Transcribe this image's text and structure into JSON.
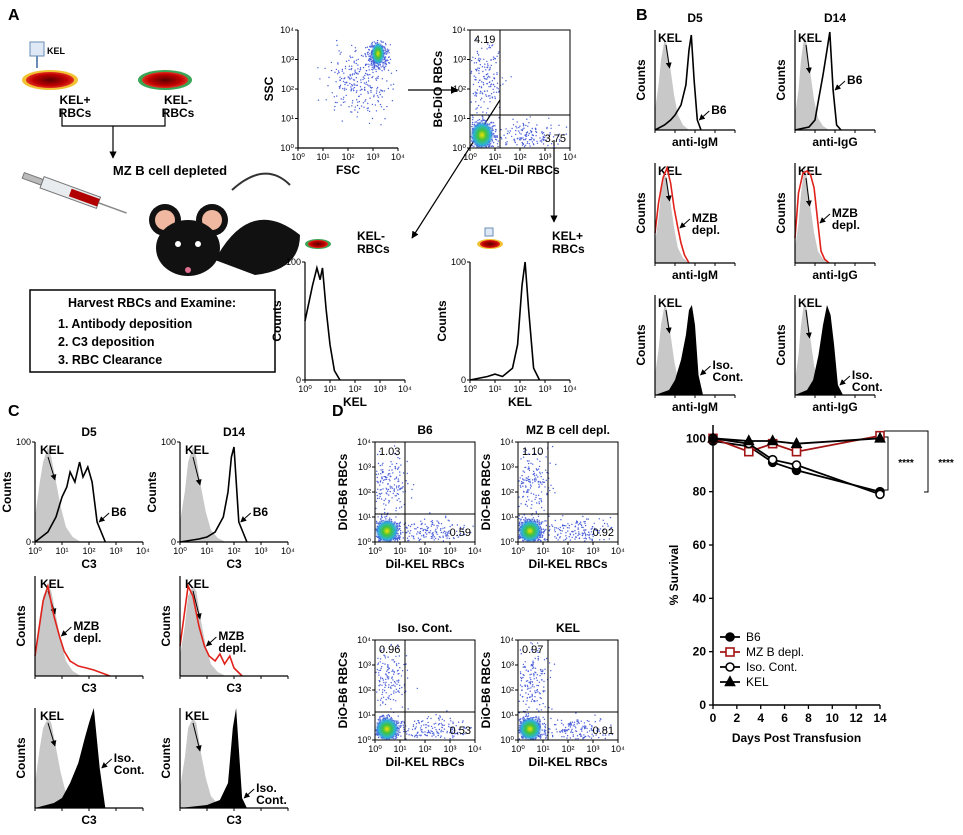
{
  "panel_labels": [
    "A",
    "B",
    "C",
    "D"
  ],
  "log_ticks": [
    {
      "value": 1,
      "label": "10⁰"
    },
    {
      "value": 10,
      "label": "10¹"
    },
    {
      "value": 100,
      "label": "10²"
    },
    {
      "value": 1000,
      "label": "10³"
    },
    {
      "value": 10000,
      "label": "10⁴"
    }
  ],
  "log_lim": [
    1,
    10000
  ],
  "hist_ylim": [
    0,
    100
  ],
  "schematic": {
    "tag": "KEL",
    "kel_pos": [
      "KEL+",
      "RBCs"
    ],
    "kel_neg": [
      "KEL-",
      "RBCs"
    ],
    "step": "MZ B cell depleted",
    "box_title": "Harvest RBCs and Examine:",
    "box_items": [
      "1. Antibody deposition",
      "2. C3 deposition",
      "3. RBC Clearance"
    ]
  },
  "flow_a": {
    "scatter": {
      "xlabel": "FSC",
      "ylabel": "SSC"
    },
    "gate": {
      "xlabel": "KEL-Dil RBCs",
      "ylabel": "B6-DiO RBCs",
      "values": [
        4.19,
        3.75
      ]
    }
  },
  "panel_a_hist": [
    {
      "title": [
        "KEL-",
        "RBCs"
      ],
      "xlabel": "KEL",
      "ylabel": "Counts",
      "yticks": [
        0,
        100
      ],
      "show_xtick_labels": true,
      "curves": [
        {
          "color": "#000",
          "filled": false,
          "x": [
            1,
            2,
            3,
            4,
            5,
            7,
            10,
            15,
            25
          ],
          "values": [
            50,
            80,
            95,
            85,
            95,
            60,
            30,
            8,
            0
          ]
        }
      ]
    },
    {
      "title": [
        "KEL+",
        "RBCs"
      ],
      "xlabel": "KEL",
      "ylabel": "Counts",
      "yticks": [
        0,
        100
      ],
      "show_xtick_labels": true,
      "curves": [
        {
          "color": "#000",
          "filled": false,
          "x": [
            1,
            5,
            10,
            20,
            50,
            80,
            120,
            160,
            220,
            350,
            600
          ],
          "values": [
            0,
            3,
            5,
            3,
            10,
            30,
            80,
            100,
            60,
            10,
            0
          ]
        }
      ]
    }
  ],
  "panel_b": {
    "columns": [
      "D5",
      "D14"
    ],
    "plots": [
      {
        "xlabel": "anti-IgM",
        "ylabel": "Counts",
        "curves": [
          {
            "label": [
              "KEL"
            ],
            "color": "#c8c8c8",
            "filled": true,
            "x": [
              1,
              1.5,
              2,
              3,
              4,
              6,
              9,
              14,
              25,
              50
            ],
            "values": [
              20,
              45,
              70,
              90,
              85,
              60,
              35,
              15,
              5,
              0
            ]
          },
          {
            "label": [
              "B6"
            ],
            "color": "#000",
            "filled": false,
            "x": [
              1,
              3,
              6,
              10,
              20,
              35,
              50,
              65,
              90,
              130,
              200
            ],
            "values": [
              0,
              5,
              10,
              15,
              25,
              45,
              80,
              95,
              50,
              10,
              0
            ]
          }
        ]
      },
      {
        "xlabel": "anti-IgG",
        "ylabel": "Counts",
        "curves": [
          {
            "label": [
              "KEL"
            ],
            "color": "#c8c8c8",
            "filled": true,
            "x": [
              1,
              1.5,
              2,
              3,
              4,
              6,
              9,
              14,
              25,
              50
            ],
            "values": [
              15,
              40,
              70,
              95,
              85,
              55,
              30,
              12,
              4,
              0
            ]
          },
          {
            "label": [
              "B6"
            ],
            "color": "#000",
            "filled": false,
            "x": [
              1,
              5,
              10,
              15,
              25,
              40,
              55,
              80,
              120,
              200
            ],
            "values": [
              0,
              3,
              10,
              30,
              55,
              80,
              98,
              40,
              5,
              0
            ]
          }
        ]
      },
      {
        "xlabel": "anti-IgM",
        "ylabel": "Counts",
        "curves": [
          {
            "label": [
              "KEL"
            ],
            "color": "#c8c8c8",
            "filled": true,
            "x": [
              1,
              1.5,
              2,
              3,
              4,
              6,
              9,
              14,
              25,
              50
            ],
            "values": [
              20,
              45,
              70,
              88,
              85,
              60,
              35,
              15,
              5,
              0
            ]
          },
          {
            "label": [
              "MZB",
              "depl."
            ],
            "color": "#e0221b",
            "filled": false,
            "x": [
              1,
              1.5,
              2.5,
              4,
              6,
              9,
              14,
              20,
              30,
              50
            ],
            "values": [
              30,
              60,
              85,
              95,
              80,
              55,
              35,
              20,
              8,
              0
            ]
          }
        ]
      },
      {
        "xlabel": "anti-IgG",
        "ylabel": "Counts",
        "curves": [
          {
            "label": [
              "KEL"
            ],
            "color": "#c8c8c8",
            "filled": true,
            "x": [
              1,
              1.5,
              2,
              3,
              4,
              6,
              9,
              14,
              25,
              50
            ],
            "values": [
              15,
              40,
              70,
              95,
              85,
              55,
              30,
              12,
              4,
              0
            ]
          },
          {
            "label": [
              "MZB",
              "depl."
            ],
            "color": "#e0221b",
            "filled": false,
            "x": [
              1,
              1.5,
              2.5,
              4,
              6,
              9,
              14,
              20,
              30,
              50
            ],
            "values": [
              25,
              70,
              90,
              92,
              88,
              75,
              40,
              12,
              4,
              0
            ]
          }
        ]
      },
      {
        "xlabel": "anti-IgM",
        "ylabel": "Counts",
        "curves": [
          {
            "label": [
              "KEL"
            ],
            "color": "#c8c8c8",
            "filled": true,
            "x": [
              1,
              1.5,
              2,
              3,
              4,
              6,
              9,
              14,
              25,
              50
            ],
            "values": [
              20,
              45,
              70,
              90,
              85,
              60,
              35,
              15,
              5,
              0
            ]
          },
          {
            "label": [
              "Iso.",
              "Cont."
            ],
            "color": "#000",
            "filled": true,
            "x": [
              1,
              5,
              10,
              20,
              35,
              50,
              70,
              100,
              150,
              250
            ],
            "values": [
              0,
              5,
              15,
              35,
              60,
              85,
              90,
              70,
              20,
              0
            ]
          }
        ]
      },
      {
        "xlabel": "anti-IgG",
        "ylabel": "Counts",
        "curves": [
          {
            "label": [
              "KEL"
            ],
            "color": "#c8c8c8",
            "filled": true,
            "x": [
              1,
              1.5,
              2,
              3,
              4,
              6,
              9,
              14,
              25,
              50
            ],
            "values": [
              15,
              40,
              70,
              95,
              85,
              55,
              30,
              12,
              4,
              0
            ]
          },
          {
            "label": [
              "Iso.",
              "Cont."
            ],
            "color": "#000",
            "filled": true,
            "x": [
              1,
              4,
              8,
              15,
              25,
              40,
              60,
              90,
              140,
              250
            ],
            "values": [
              0,
              5,
              15,
              40,
              70,
              90,
              80,
              50,
              10,
              0
            ]
          }
        ]
      }
    ]
  },
  "panel_c": {
    "columns": [
      "D5",
      "D14"
    ],
    "plots": [
      {
        "xlabel": "C3",
        "ylabel": "Counts",
        "yticks": [
          0,
          100
        ],
        "show_xtick_labels": true,
        "curves": [
          {
            "label": [
              "KEL"
            ],
            "color": "#c8c8c8",
            "filled": true,
            "x": [
              1,
              1.5,
              2,
              3,
              4,
              6,
              9,
              14,
              25,
              50
            ],
            "values": [
              25,
              60,
              80,
              95,
              85,
              60,
              35,
              15,
              5,
              0
            ]
          },
          {
            "label": [
              "B6"
            ],
            "color": "#000",
            "filled": false,
            "x": [
              1,
              3,
              6,
              10,
              15,
              20,
              30,
              45,
              60,
              90,
              130,
              200,
              400
            ],
            "values": [
              0,
              10,
              25,
              45,
              55,
              70,
              60,
              80,
              65,
              75,
              60,
              20,
              0
            ]
          }
        ]
      },
      {
        "xlabel": "C3",
        "ylabel": "Counts",
        "yticks": [
          0,
          100
        ],
        "show_xtick_labels": true,
        "curves": [
          {
            "label": [
              "KEL"
            ],
            "color": "#c8c8c8",
            "filled": true,
            "x": [
              1,
              1.5,
              2,
              3,
              4,
              6,
              9,
              14,
              25,
              50
            ],
            "values": [
              20,
              50,
              80,
              95,
              85,
              55,
              30,
              12,
              4,
              0
            ]
          },
          {
            "label": [
              "B6"
            ],
            "color": "#000",
            "filled": false,
            "x": [
              1,
              5,
              10,
              20,
              40,
              60,
              80,
              100,
              150,
              300
            ],
            "values": [
              0,
              3,
              5,
              10,
              25,
              50,
              85,
              95,
              20,
              0
            ]
          }
        ]
      },
      {
        "xlabel": "C3",
        "ylabel": "Counts",
        "curves": [
          {
            "label": [
              "KEL"
            ],
            "color": "#c8c8c8",
            "filled": true,
            "x": [
              1,
              1.5,
              2,
              3,
              4,
              6,
              9,
              14,
              25,
              50
            ],
            "values": [
              25,
              60,
              80,
              90,
              85,
              60,
              35,
              15,
              5,
              0
            ]
          },
          {
            "label": [
              "MZB",
              "depl."
            ],
            "color": "#e0221b",
            "filled": false,
            "x": [
              1,
              2,
              3,
              5,
              8,
              12,
              20,
              40,
              80,
              150,
              300,
              600
            ],
            "values": [
              20,
              75,
              90,
              60,
              40,
              25,
              15,
              10,
              8,
              6,
              3,
              0
            ]
          }
        ]
      },
      {
        "xlabel": "C3",
        "ylabel": "Counts",
        "curves": [
          {
            "label": [
              "KEL"
            ],
            "color": "#c8c8c8",
            "filled": true,
            "x": [
              1,
              1.5,
              2,
              3,
              4,
              6,
              9,
              14,
              25,
              50
            ],
            "values": [
              20,
              50,
              80,
              90,
              85,
              55,
              30,
              12,
              4,
              0
            ]
          },
          {
            "label": [
              "MZB",
              "depl."
            ],
            "color": "#e0221b",
            "filled": false,
            "x": [
              1,
              2,
              3,
              5,
              8,
              12,
              20,
              30,
              45,
              70,
              100,
              200
            ],
            "values": [
              30,
              90,
              80,
              50,
              30,
              20,
              15,
              22,
              12,
              20,
              8,
              0
            ]
          }
        ]
      },
      {
        "xlabel": "C3",
        "ylabel": "Counts",
        "curves": [
          {
            "label": [
              "KEL"
            ],
            "color": "#c8c8c8",
            "filled": true,
            "x": [
              1,
              1.5,
              2,
              3,
              4,
              6,
              9,
              14,
              25,
              50
            ],
            "values": [
              25,
              60,
              80,
              90,
              85,
              60,
              35,
              15,
              5,
              0
            ]
          },
          {
            "label": [
              "Iso.",
              "Cont."
            ],
            "color": "#000",
            "filled": true,
            "x": [
              1,
              5,
              10,
              20,
              40,
              70,
              100,
              150,
              250,
              400
            ],
            "values": [
              0,
              5,
              10,
              25,
              45,
              70,
              85,
              100,
              40,
              0
            ]
          }
        ]
      },
      {
        "xlabel": "C3",
        "ylabel": "Counts",
        "curves": [
          {
            "label": [
              "KEL"
            ],
            "color": "#c8c8c8",
            "filled": true,
            "x": [
              1,
              1.5,
              2,
              3,
              4,
              6,
              9,
              14,
              25,
              50
            ],
            "values": [
              20,
              50,
              80,
              90,
              85,
              55,
              30,
              12,
              4,
              0
            ]
          },
          {
            "label": [
              "Iso.",
              "Cont."
            ],
            "color": "#000",
            "filled": true,
            "x": [
              1,
              10,
              30,
              60,
              90,
              120,
              150,
              200,
              300
            ],
            "values": [
              0,
              3,
              8,
              25,
              80,
              100,
              60,
              10,
              0
            ]
          }
        ]
      }
    ]
  },
  "panel_d": {
    "xlabel": "Dil-KEL RBCs",
    "ylabel": "DiO-B6 RBCs",
    "plots": [
      {
        "title": "B6",
        "values": [
          1.03,
          0.59
        ]
      },
      {
        "title": "MZ B cell depl.",
        "values": [
          1.1,
          0.92
        ],
        "value_labels": [
          "1.10",
          "0.92"
        ]
      },
      {
        "title": "Iso. Cont.",
        "values": [
          0.96,
          0.53
        ]
      },
      {
        "title": "KEL",
        "values": [
          0.97,
          0.81
        ]
      }
    ]
  },
  "chart_data": {
    "type": "line",
    "xlabel": "Days Post Transfusion",
    "ylabel": "% Survival",
    "x": [
      0,
      3,
      5,
      7,
      14
    ],
    "xlim": [
      0,
      14
    ],
    "xticks": [
      0,
      2,
      4,
      6,
      8,
      10,
      12,
      14
    ],
    "ylim": [
      0,
      105
    ],
    "yticks": [
      0,
      20,
      40,
      60,
      80,
      100
    ],
    "series": [
      {
        "name": "B6",
        "color": "#000000",
        "marker": "circle-filled",
        "values": [
          99,
          97,
          91,
          88,
          80
        ]
      },
      {
        "name": "MZ B depl.",
        "color": "#a31515",
        "marker": "square-open",
        "values": [
          100,
          95,
          98,
          95,
          101
        ]
      },
      {
        "name": "Iso. Cont.",
        "color": "#000000",
        "marker": "circle-open",
        "values": [
          100,
          98,
          92,
          90,
          79
        ]
      },
      {
        "name": "KEL",
        "color": "#000000",
        "marker": "triangle",
        "values": [
          100,
          99,
          99,
          98,
          100
        ]
      }
    ],
    "annotations": [
      "****",
      "****"
    ]
  }
}
